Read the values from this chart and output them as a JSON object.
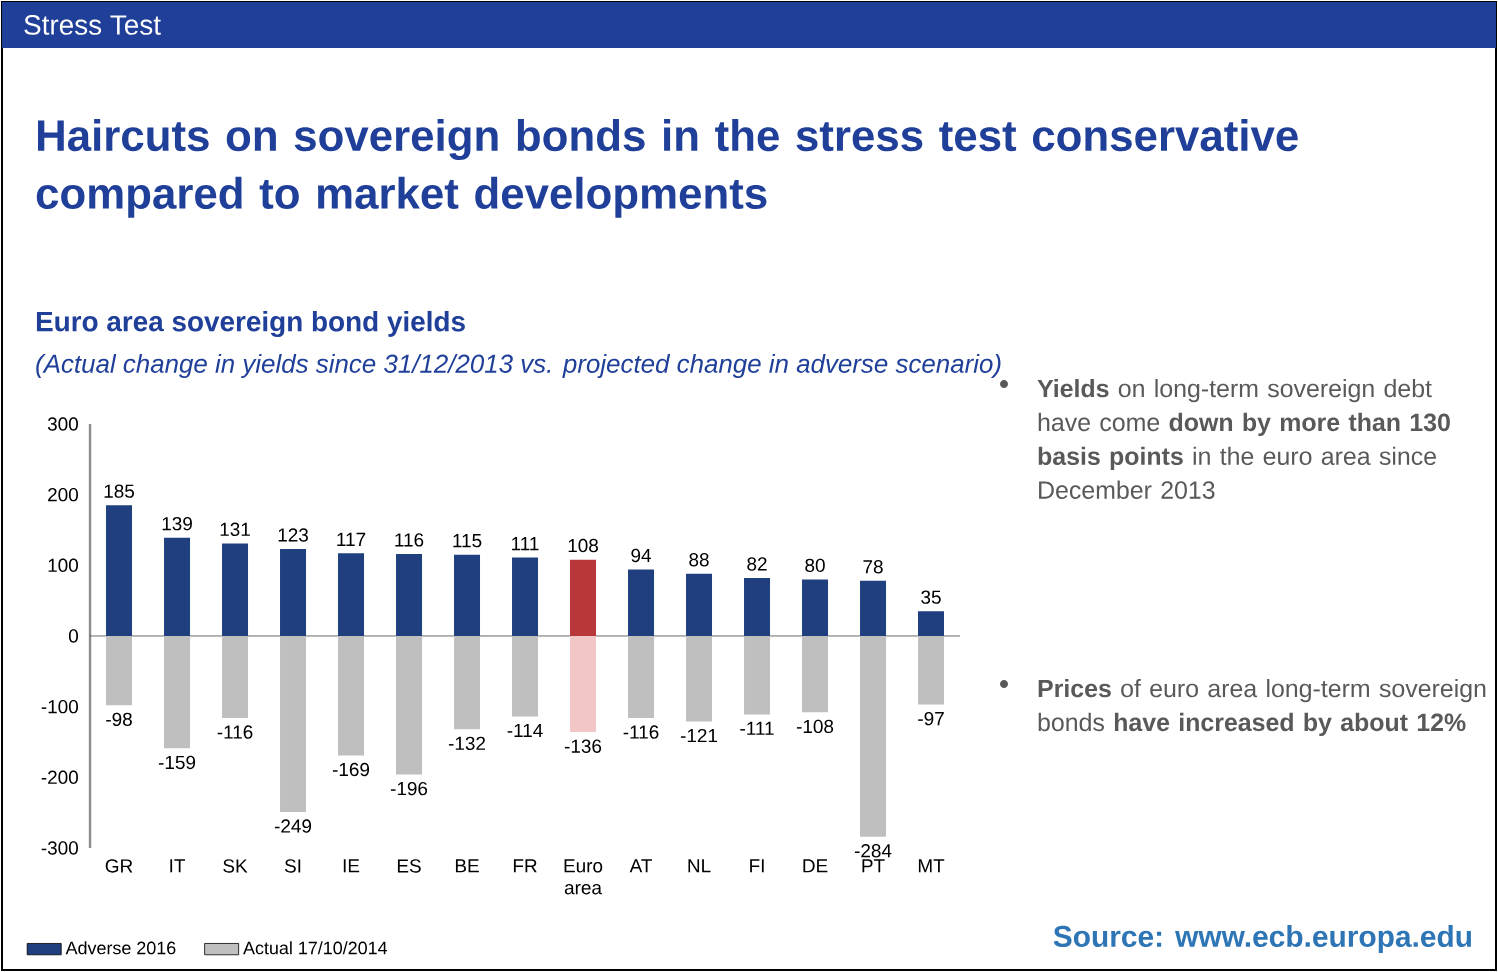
{
  "chart_data": {
    "type": "bar",
    "title": "Haircuts on sovereign bonds in the stress test conservative compared to market developments",
    "subtitle": "Euro area sovereign bond yields",
    "categories": [
      "GR",
      "IT",
      "SK",
      "SI",
      "IE",
      "ES",
      "BE",
      "FR",
      "Euro area",
      "AT",
      "NL",
      "FI",
      "DE",
      "PT",
      "MT"
    ],
    "series": [
      {
        "name": "Adverse 2016",
        "color": "#1f3f7f",
        "colors": [
          "#1f3f7f",
          "#1f3f7f",
          "#1f3f7f",
          "#1f3f7f",
          "#1f3f7f",
          "#1f3f7f",
          "#1f3f7f",
          "#1f3f7f",
          "#b8373a",
          "#1f3f7f",
          "#1f3f7f",
          "#1f3f7f",
          "#1f3f7f",
          "#1f3f7f",
          "#1f3f7f"
        ],
        "values": [
          185,
          139,
          131,
          123,
          117,
          116,
          115,
          111,
          108,
          94,
          88,
          82,
          80,
          78,
          35
        ]
      },
      {
        "name": "Actual 17/10/2014",
        "color": "#bfbfbf",
        "colors": [
          "#bfbfbf",
          "#bfbfbf",
          "#bfbfbf",
          "#bfbfbf",
          "#bfbfbf",
          "#bfbfbf",
          "#bfbfbf",
          "#bfbfbf",
          "#f2c6c6",
          "#bfbfbf",
          "#bfbfbf",
          "#bfbfbf",
          "#bfbfbf",
          "#bfbfbf",
          "#bfbfbf"
        ],
        "values": [
          -98,
          -159,
          -116,
          -249,
          -169,
          -196,
          -132,
          -114,
          -136,
          -116,
          -121,
          -111,
          -108,
          -284,
          -97
        ]
      }
    ],
    "ylim": [
      -300,
      300
    ],
    "yticks": [
      -300,
      -200,
      -100,
      0,
      100,
      200,
      300
    ],
    "data_labels": true,
    "legend": "bottom left",
    "stacked": true,
    "annotations": [
      "Stress Test",
      "(Actual change in yields since 31/12/2013 vs. projected change in adverse scenario)",
      "**Yields** on long-term sovereign debt have come **down by more than 130 basis points** in the euro area since December 2013",
      "**Prices** of euro area long-term sovereign bonds **have increased by about 12%**",
      "Source: www.ecb.europa.edu"
    ]
  }
}
